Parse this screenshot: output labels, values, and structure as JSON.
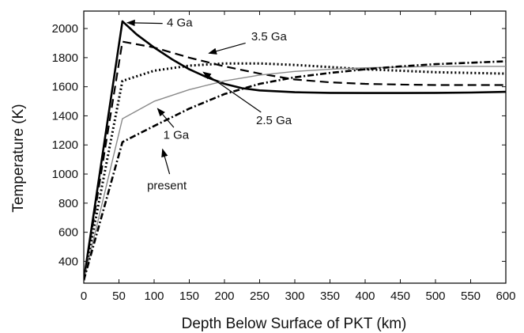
{
  "chart_data": {
    "type": "line",
    "xlabel": "Depth Below Surface of PKT (km)",
    "ylabel": "Temperature (K)",
    "xlim": [
      0,
      600
    ],
    "ylim": [
      250,
      2120
    ],
    "xticks": [
      0,
      50,
      100,
      150,
      200,
      250,
      300,
      350,
      400,
      450,
      500,
      550,
      600
    ],
    "yticks": [
      400,
      600,
      800,
      1000,
      1200,
      1400,
      1600,
      1800,
      2000
    ],
    "grid": false,
    "series": [
      {
        "name": "4 Ga",
        "style": "solid",
        "x": [
          0,
          55,
          75,
          100,
          125,
          150,
          175,
          200,
          225,
          250,
          300,
          350,
          400,
          450,
          500,
          550,
          600
        ],
        "y": [
          270,
          2050,
          1960,
          1870,
          1790,
          1720,
          1665,
          1620,
          1590,
          1575,
          1562,
          1558,
          1557,
          1557,
          1558,
          1560,
          1565
        ]
      },
      {
        "name": "3.5 Ga",
        "style": "dashed",
        "x": [
          0,
          55,
          100,
          150,
          200,
          250,
          300,
          350,
          400,
          450,
          500,
          550,
          600
        ],
        "y": [
          270,
          1910,
          1870,
          1800,
          1740,
          1690,
          1650,
          1630,
          1620,
          1615,
          1612,
          1612,
          1612
        ]
      },
      {
        "name": "2.5 Ga",
        "style": "dotted",
        "x": [
          0,
          55,
          100,
          150,
          200,
          250,
          300,
          350,
          400,
          450,
          500,
          550,
          600
        ],
        "y": [
          270,
          1640,
          1710,
          1745,
          1760,
          1760,
          1750,
          1735,
          1720,
          1710,
          1700,
          1695,
          1690
        ]
      },
      {
        "name": "1 Ga",
        "style": "thin-gray",
        "x": [
          0,
          55,
          100,
          150,
          200,
          250,
          300,
          350,
          400,
          450,
          500,
          550,
          600
        ],
        "y": [
          270,
          1380,
          1500,
          1580,
          1640,
          1680,
          1705,
          1720,
          1730,
          1735,
          1740,
          1740,
          1740
        ]
      },
      {
        "name": "present",
        "style": "dash-dot",
        "x": [
          0,
          55,
          100,
          150,
          200,
          250,
          300,
          350,
          400,
          450,
          500,
          550,
          600
        ],
        "y": [
          270,
          1220,
          1330,
          1450,
          1550,
          1620,
          1665,
          1695,
          1720,
          1740,
          1755,
          1765,
          1775
        ]
      }
    ],
    "annotations": [
      {
        "text": "4 Ga"
      },
      {
        "text": "3.5 Ga"
      },
      {
        "text": "2.5 Ga"
      },
      {
        "text": "1 Ga"
      },
      {
        "text": "present"
      }
    ]
  }
}
